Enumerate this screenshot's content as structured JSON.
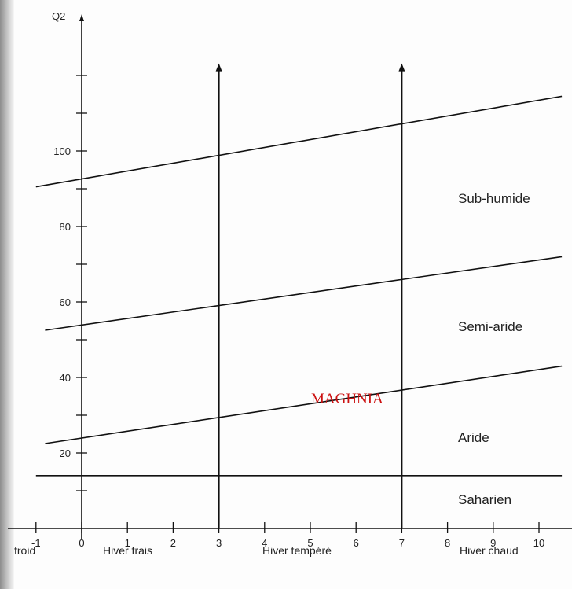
{
  "chart_data": {
    "type": "line",
    "ylabel": "Q2",
    "xlabel": "",
    "xlim": [
      -1.5,
      10.5
    ],
    "ylim": [
      0,
      125
    ],
    "x_ticks": [
      -1,
      0,
      1,
      2,
      3,
      4,
      5,
      6,
      7,
      8,
      9,
      10
    ],
    "x_tick_labels": [
      "-1",
      "0",
      "1",
      "2",
      "3",
      "4",
      "5",
      "6",
      "7",
      "8",
      "9",
      "10"
    ],
    "y_ticks": [
      20,
      40,
      60,
      80,
      100
    ],
    "y_tick_labels": [
      "20",
      "40",
      "60",
      "80",
      "100"
    ],
    "series": [
      {
        "x": [
          -1,
          10.5
        ],
        "y": [
          90.5,
          114.5
        ]
      },
      {
        "x": [
          -0.8,
          10.5
        ],
        "y": [
          52.5,
          72
        ]
      },
      {
        "x": [
          -0.8,
          10.5
        ],
        "y": [
          22.5,
          43
        ]
      },
      {
        "x": [
          -1,
          10.5
        ],
        "y": [
          14,
          14
        ]
      }
    ],
    "vertical_markers": [
      {
        "x": 3,
        "y_top": 123
      },
      {
        "x": 7,
        "y_top": 123
      }
    ],
    "zone_labels": [
      "Sub-humide",
      "Semi-aride",
      "Aride",
      "Saharien"
    ],
    "winter_labels": [
      "froid",
      "Hiver frais",
      "Hiver tempéré",
      "Hiver chaud"
    ],
    "annotation": "MAGHNIA",
    "grid": false,
    "legend": "none"
  }
}
